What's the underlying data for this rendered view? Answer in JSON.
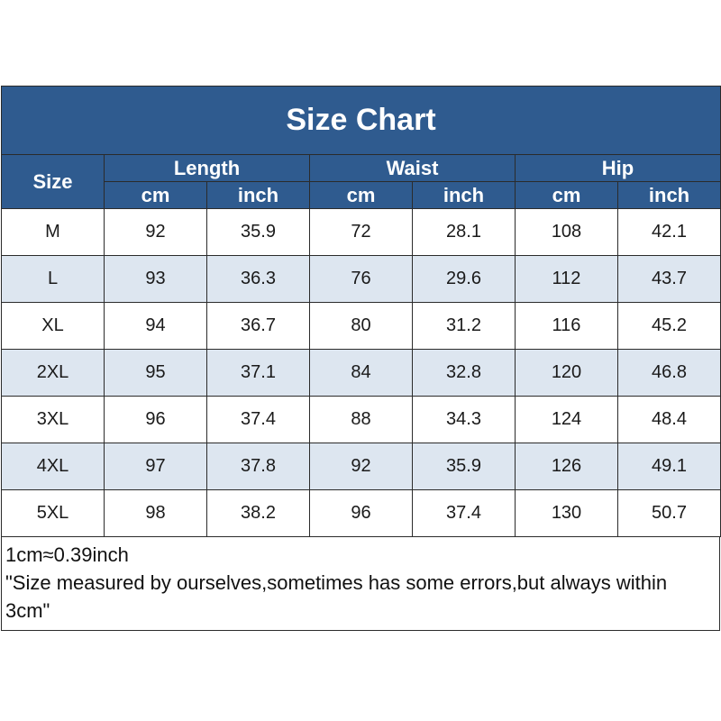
{
  "title": "Size Chart",
  "size_header": "Size",
  "groups": [
    "Length",
    "Waist",
    "Hip"
  ],
  "units": [
    "cm",
    "inch",
    "cm",
    "inch",
    "cm",
    "inch"
  ],
  "rows": [
    [
      "M",
      "92",
      "35.9",
      "72",
      "28.1",
      "108",
      "42.1"
    ],
    [
      "L",
      "93",
      "36.3",
      "76",
      "29.6",
      "112",
      "43.7"
    ],
    [
      "XL",
      "94",
      "36.7",
      "80",
      "31.2",
      "116",
      "45.2"
    ],
    [
      "2XL",
      "95",
      "37.1",
      "84",
      "32.8",
      "120",
      "46.8"
    ],
    [
      "3XL",
      "96",
      "37.4",
      "88",
      "34.3",
      "124",
      "48.4"
    ],
    [
      "4XL",
      "97",
      "37.8",
      "92",
      "35.9",
      "126",
      "49.1"
    ],
    [
      "5XL",
      "98",
      "38.2",
      "96",
      "37.4",
      "130",
      "50.7"
    ]
  ],
  "notes": {
    "conversion": "1cm≈0.39inch",
    "disclaimer": "\"Size measured by ourselves,sometimes has some errors,but always within 3cm\""
  },
  "colors": {
    "header_bg": "#2f5b8f",
    "header_text": "#ffffff",
    "stripe": "#dde6f0"
  },
  "chart_data": {
    "type": "table",
    "title": "Size Chart",
    "columns": [
      "Size",
      "Length cm",
      "Length inch",
      "Waist cm",
      "Waist inch",
      "Hip cm",
      "Hip inch"
    ],
    "rows": [
      [
        "M",
        92,
        35.9,
        72,
        28.1,
        108,
        42.1
      ],
      [
        "L",
        93,
        36.3,
        76,
        29.6,
        112,
        43.7
      ],
      [
        "XL",
        94,
        36.7,
        80,
        31.2,
        116,
        45.2
      ],
      [
        "2XL",
        95,
        37.1,
        84,
        32.8,
        120,
        46.8
      ],
      [
        "3XL",
        96,
        37.4,
        88,
        34.3,
        124,
        48.4
      ],
      [
        "4XL",
        97,
        37.8,
        92,
        35.9,
        126,
        49.1
      ],
      [
        "5XL",
        98,
        38.2,
        96,
        37.4,
        130,
        50.7
      ]
    ]
  }
}
